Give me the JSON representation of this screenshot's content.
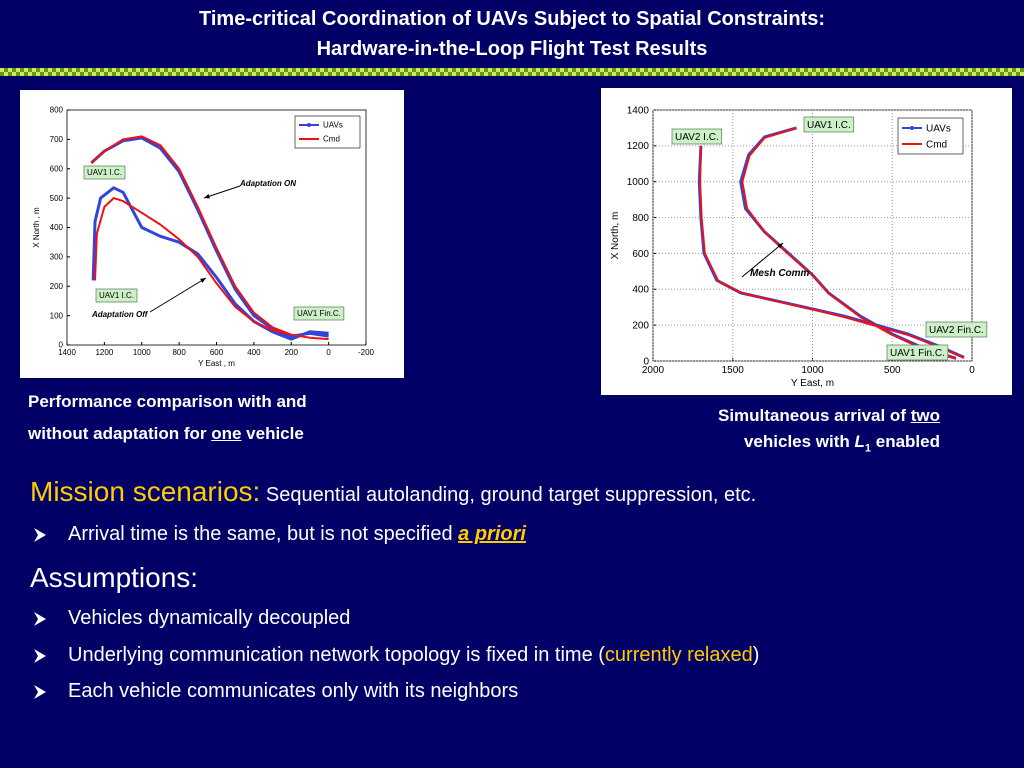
{
  "header": {
    "title_line1": "Time-critical Coordination of UAVs Subject to Spatial Constraints:",
    "title_line2": "Hardware-in-the-Loop Flight Test Results"
  },
  "chart_data": [
    {
      "type": "line",
      "xlabel": "Y East , m",
      "ylabel": "X North , m",
      "xlim": [
        1400,
        -200
      ],
      "ylim": [
        0,
        800
      ],
      "xticks": [
        1400,
        1200,
        1000,
        800,
        600,
        400,
        200,
        0,
        -200
      ],
      "yticks": [
        0,
        100,
        200,
        300,
        400,
        500,
        600,
        700,
        800
      ],
      "grid": false,
      "legend": "upper right",
      "annotations": [
        "UAV1 I.C.",
        "Adaptation ON",
        "UAV1 I.C.",
        "Adaptation Off",
        "UAV1 Fin.C."
      ],
      "series": [
        {
          "name": "UAVs",
          "color": "#3344dd",
          "x": [
            1270,
            1200,
            1100,
            1000,
            900,
            800,
            700,
            600,
            500,
            400,
            300,
            200,
            100,
            0,
            null,
            1260,
            1250,
            1220,
            1150,
            1100,
            1050,
            1000,
            900,
            800,
            700,
            600,
            500,
            400,
            300,
            200,
            100,
            0
          ],
          "values": [
            620,
            660,
            695,
            705,
            670,
            590,
            460,
            320,
            190,
            100,
            55,
            30,
            40,
            30,
            null,
            220,
            420,
            500,
            535,
            520,
            460,
            400,
            370,
            350,
            310,
            230,
            140,
            80,
            45,
            20,
            45,
            40
          ]
        },
        {
          "name": "Cmd",
          "color": "#ee1111",
          "x": [
            1270,
            1200,
            1100,
            1000,
            900,
            800,
            700,
            600,
            500,
            400,
            300,
            200,
            100,
            0,
            null,
            1250,
            1240,
            1200,
            1150,
            1100,
            1000,
            900,
            800,
            700,
            600,
            500,
            400,
            300,
            200,
            100,
            0
          ],
          "values": [
            620,
            660,
            700,
            710,
            680,
            600,
            470,
            330,
            200,
            110,
            60,
            35,
            25,
            20,
            null,
            220,
            380,
            470,
            500,
            490,
            450,
            410,
            360,
            300,
            210,
            130,
            80,
            50,
            35,
            25,
            20
          ]
        }
      ]
    },
    {
      "type": "line",
      "xlabel": "Y East, m",
      "ylabel": "X North, m",
      "xlim": [
        2000,
        0
      ],
      "ylim": [
        0,
        1400
      ],
      "xticks": [
        2000,
        1500,
        1000,
        500,
        0
      ],
      "yticks": [
        0,
        200,
        400,
        600,
        800,
        1000,
        1200,
        1400
      ],
      "grid": true,
      "legend": "upper right",
      "annotations": [
        "UAV2 I.C.",
        "UAV1 I.C.",
        "Mesh Comm",
        "UAV2 Fin.C.",
        "UAV1 Fin.C."
      ],
      "series": [
        {
          "name": "UAVs",
          "color": "#3344dd",
          "x": [
            1700,
            1710,
            1700,
            1680,
            1600,
            1450,
            1200,
            1000,
            800,
            600,
            400,
            200,
            50,
            null,
            1100,
            1300,
            1400,
            1450,
            1420,
            1300,
            1150,
            1000,
            900,
            700,
            500,
            300,
            100
          ],
          "values": [
            1200,
            1000,
            800,
            600,
            450,
            380,
            330,
            290,
            250,
            200,
            150,
            80,
            20,
            null,
            1300,
            1250,
            1150,
            1000,
            850,
            720,
            600,
            480,
            380,
            250,
            150,
            70,
            15
          ]
        },
        {
          "name": "Cmd",
          "color": "#ee1111",
          "x": [
            1700,
            1705,
            1695,
            1675,
            1590,
            1440,
            1200,
            1000,
            800,
            600,
            400,
            200,
            50,
            null,
            1100,
            1300,
            1395,
            1440,
            1410,
            1295,
            1150,
            1000,
            895,
            700,
            500,
            300,
            100
          ],
          "values": [
            1200,
            1000,
            800,
            600,
            445,
            378,
            328,
            288,
            245,
            195,
            145,
            75,
            18,
            null,
            1300,
            1245,
            1145,
            1000,
            850,
            715,
            595,
            478,
            375,
            245,
            145,
            65,
            12
          ]
        }
      ]
    }
  ],
  "captions": {
    "left": {
      "line1": "Performance comparison with and",
      "line2_a": "without adaptation for ",
      "line2_b": "one",
      "line2_c": " vehicle"
    },
    "right": {
      "line1_a": "Simultaneous arrival of ",
      "line1_b": "two",
      "line2_a": "vehicles with ",
      "line2_b": "L",
      "line2_c": "1",
      "line2_d": " enabled"
    }
  },
  "body": {
    "mission_heading": "Mission scenarios:",
    "mission_text": " Sequential autolanding, ground target suppression, etc.",
    "bullet1_a": "Arrival time is the same, but is not specified ",
    "bullet1_b": "a priori",
    "assumptions_heading": "Assumptions:",
    "bullets": [
      "Vehicles dynamically decoupled",
      "",
      "Each vehicle communicates only with its neighbors"
    ],
    "bullet_network_a": "Underlying communication network topology is fixed in time (",
    "bullet_network_b": "currently relaxed",
    "bullet_network_c": ")"
  }
}
